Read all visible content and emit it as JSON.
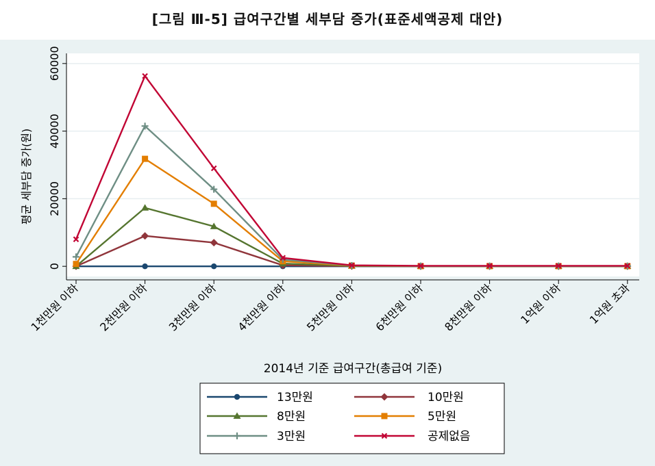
{
  "chart_data": {
    "type": "line",
    "title": "[그림 Ⅲ-5] 급여구간별 세부담 증가(표준세액공제 대안)",
    "xlabel": "2014년 기준 급여구간(총급여 기준)",
    "ylabel": "평균 세부담 증가(원)",
    "categories": [
      "1천만원 이하",
      "2천만원 이하",
      "3천만원 이하",
      "4천만원 이하",
      "5천만원 이하",
      "6천만원 이하",
      "8천만원 이하",
      "1억원 이하",
      "1억원 초과"
    ],
    "yticks": [
      0,
      20000,
      40000,
      60000
    ],
    "ylim": [
      -3000,
      63000
    ],
    "grid": true,
    "legend_position": "bottom",
    "series": [
      {
        "name": "13만원",
        "color": "#1a476f",
        "marker": "circle",
        "values": [
          0,
          0,
          0,
          0,
          0,
          0,
          0,
          0,
          0
        ]
      },
      {
        "name": "10만원",
        "color": "#90353b",
        "marker": "diamond",
        "values": [
          0,
          9000,
          7000,
          300,
          50,
          20,
          20,
          20,
          20
        ]
      },
      {
        "name": "8만원",
        "color": "#55752f",
        "marker": "triangle",
        "values": [
          0,
          17300,
          11800,
          800,
          100,
          30,
          30,
          30,
          30
        ]
      },
      {
        "name": "5만원",
        "color": "#e37e00",
        "marker": "square",
        "values": [
          700,
          31800,
          18500,
          1500,
          200,
          50,
          50,
          50,
          50
        ]
      },
      {
        "name": "3만원",
        "color": "#6e8e84",
        "marker": "plus",
        "values": [
          2800,
          41500,
          22800,
          2000,
          250,
          80,
          80,
          80,
          80
        ]
      },
      {
        "name": "공제없음",
        "color": "#c10534",
        "marker": "x",
        "values": [
          8000,
          56300,
          29000,
          2500,
          300,
          150,
          150,
          150,
          150
        ]
      }
    ]
  }
}
